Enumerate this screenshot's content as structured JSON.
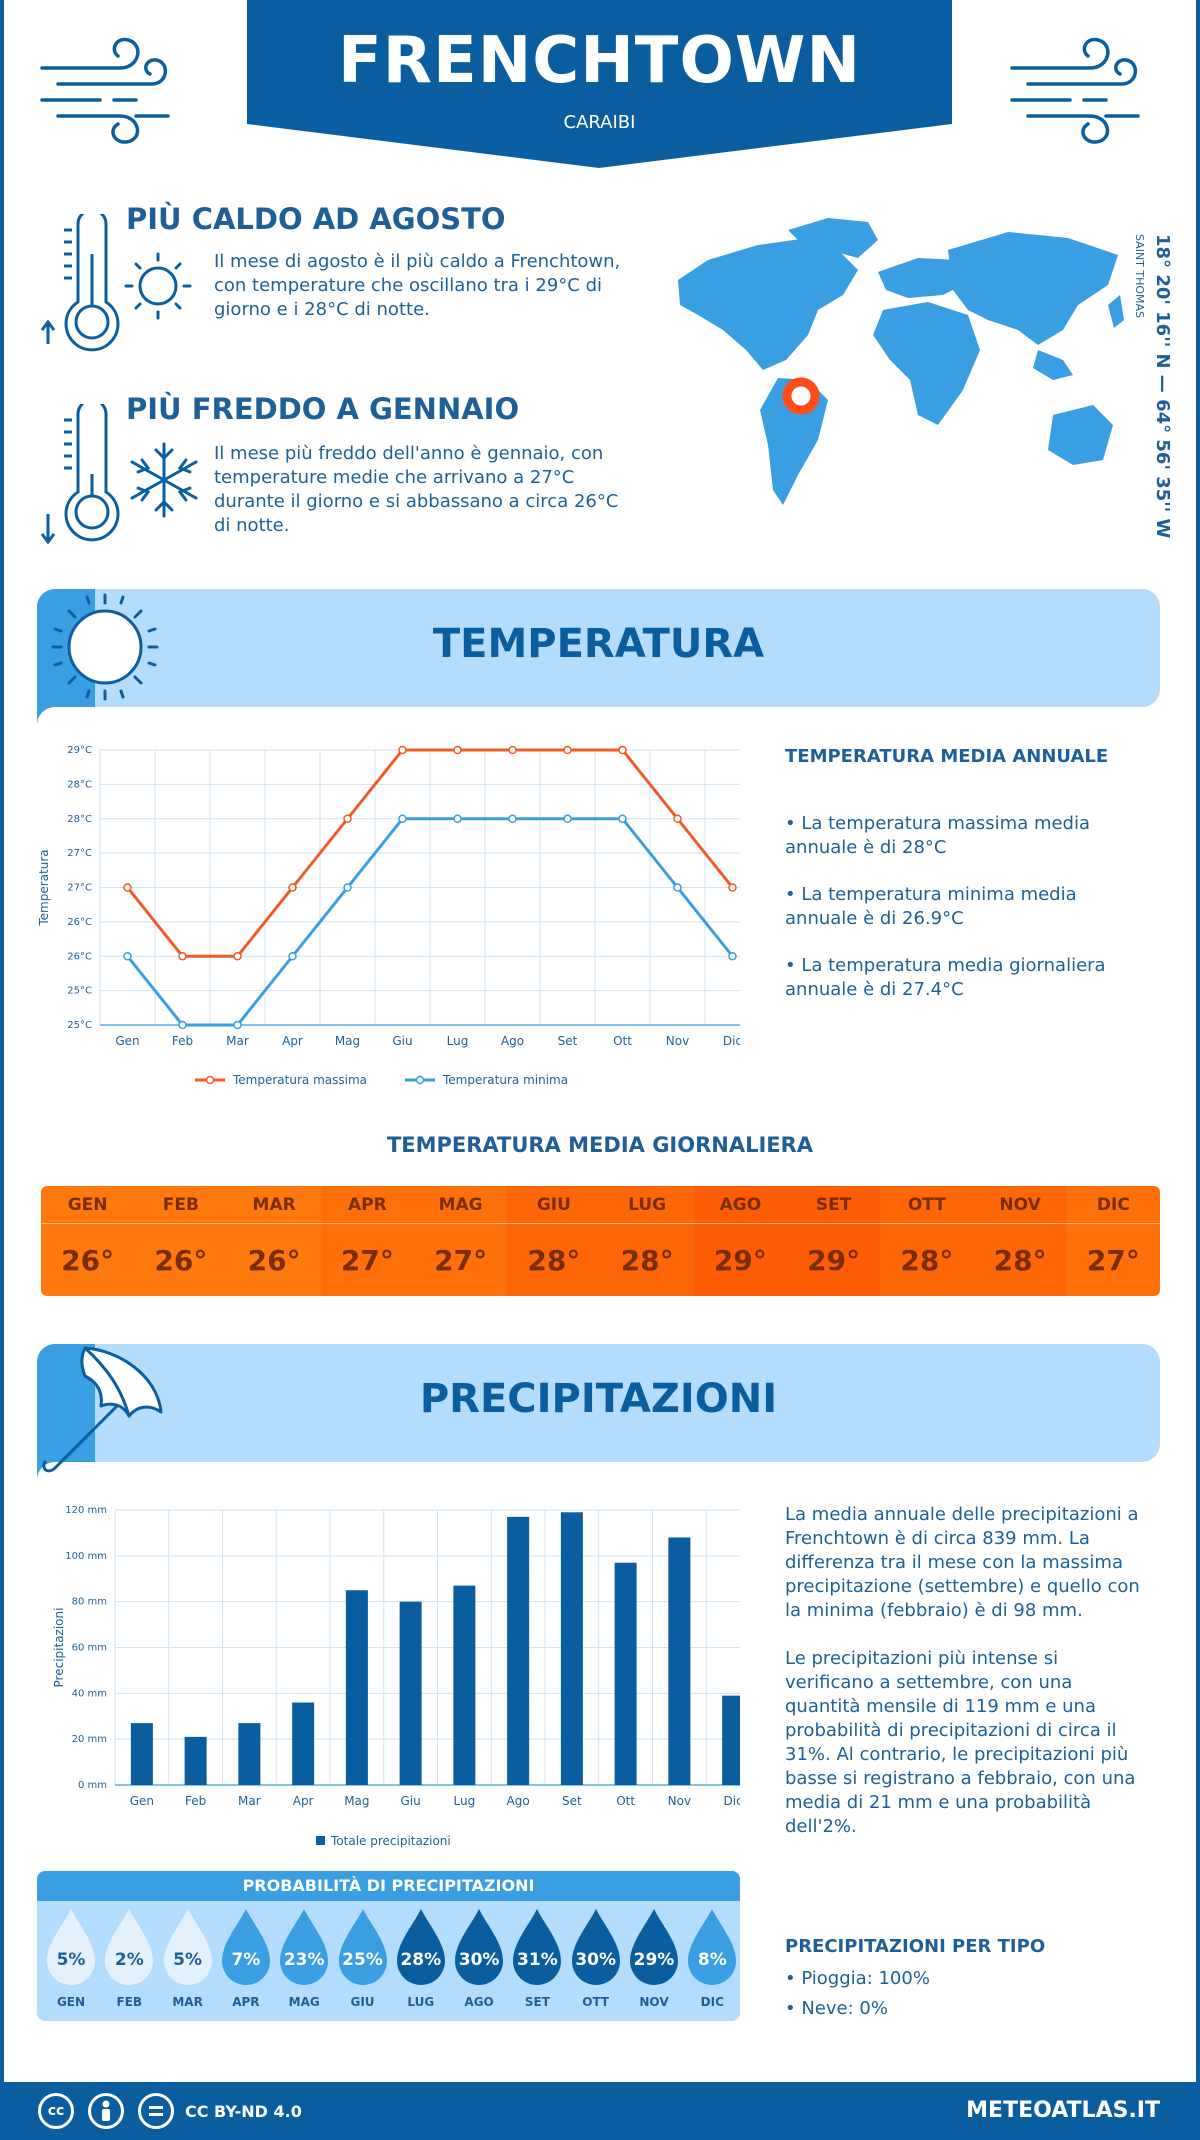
{
  "header": {
    "city": "FRENCHTOWN",
    "region": "CARAIBI"
  },
  "hottest": {
    "title": "PIÙ CALDO AD AGOSTO",
    "text": "Il mese di agosto è il più caldo a Frenchtown, con temperature che oscillano tra i 29°C di giorno e i 28°C di notte."
  },
  "coldest": {
    "title": "PIÙ FREDDO A GENNAIO",
    "text": "Il mese più freddo dell'anno è gennaio, con temperature medie che arrivano a 27°C durante il giorno e si abbassano a circa 26°C di notte."
  },
  "location": {
    "coords": "18° 20' 16'' N — 64° 56' 35'' W",
    "area": "SAINT THOMAS"
  },
  "temperature_section": {
    "title": "TEMPERATURA",
    "annual_title": "TEMPERATURA MEDIA ANNUALE",
    "bullets": [
      "• La temperatura massima media annuale è di 28°C",
      "• La temperatura minima media annuale è di 26.9°C",
      "• La temperatura media giornaliera annuale è di 27.4°C"
    ],
    "daily_title": "TEMPERATURA MEDIA GIORNALIERA",
    "daily": [
      {
        "month": "GEN",
        "value": "26°",
        "color": "#ff7a0e"
      },
      {
        "month": "FEB",
        "value": "26°",
        "color": "#ff7a0e"
      },
      {
        "month": "MAR",
        "value": "26°",
        "color": "#ff7a0e"
      },
      {
        "month": "APR",
        "value": "27°",
        "color": "#ff700a"
      },
      {
        "month": "MAG",
        "value": "27°",
        "color": "#ff700a"
      },
      {
        "month": "GIU",
        "value": "28°",
        "color": "#ff6608"
      },
      {
        "month": "LUG",
        "value": "28°",
        "color": "#ff6608"
      },
      {
        "month": "AGO",
        "value": "29°",
        "color": "#ff5c06"
      },
      {
        "month": "SET",
        "value": "29°",
        "color": "#ff5c06"
      },
      {
        "month": "OTT",
        "value": "28°",
        "color": "#ff6608"
      },
      {
        "month": "NOV",
        "value": "28°",
        "color": "#ff6608"
      },
      {
        "month": "DIC",
        "value": "27°",
        "color": "#ff700a"
      }
    ]
  },
  "chart_data": [
    {
      "type": "line",
      "categories": [
        "Gen",
        "Feb",
        "Mar",
        "Apr",
        "Mag",
        "Giu",
        "Lug",
        "Ago",
        "Set",
        "Ott",
        "Nov",
        "Dic"
      ],
      "series": [
        {
          "name": "Temperatura massima",
          "color": "#f05a28",
          "values": [
            27,
            26,
            26,
            27,
            28,
            29,
            29,
            29,
            29,
            29,
            28,
            27
          ]
        },
        {
          "name": "Temperatura minima",
          "color": "#3a9ee3",
          "values": [
            26,
            25,
            25,
            26,
            27,
            28,
            28,
            28,
            28,
            28,
            27,
            26
          ]
        }
      ],
      "ylabel": "Temperatura",
      "yticks": [
        "25°C",
        "25°C",
        "26°C",
        "26°C",
        "27°C",
        "27°C",
        "28°C",
        "28°C",
        "29°C"
      ],
      "ylim": [
        25,
        29
      ],
      "grid": true,
      "legend": "bottom"
    },
    {
      "type": "bar",
      "categories": [
        "Gen",
        "Feb",
        "Mar",
        "Apr",
        "Mag",
        "Giu",
        "Lug",
        "Ago",
        "Set",
        "Ott",
        "Nov",
        "Dic"
      ],
      "series": [
        {
          "name": "Totale precipitazioni",
          "color": "#0a5ea0",
          "values": [
            27,
            21,
            27,
            36,
            85,
            80,
            87,
            117,
            119,
            97,
            108,
            39
          ]
        }
      ],
      "ylabel": "Precipitazioni",
      "yticks": [
        "0 mm",
        "20 mm",
        "40 mm",
        "60 mm",
        "80 mm",
        "100 mm",
        "120 mm"
      ],
      "ylim": [
        0,
        120
      ],
      "grid": true,
      "legend": "bottom"
    }
  ],
  "precipitation_section": {
    "title": "PRECIPITAZIONI",
    "para1": "La media annuale delle precipitazioni a Frenchtown è di circa 839 mm. La differenza tra il mese con la massima precipitazione (settembre) e quello con la minima (febbraio) è di 98 mm.",
    "para2": "Le precipitazioni più intense si verificano a settembre, con una quantità mensile di 119 mm e una probabilità di precipitazioni di circa il 31%. Al contrario, le precipitazioni più basse si registrano a febbraio, con una media di 21 mm e una probabilità dell'2%.",
    "prob_title": "PROBABILITÀ DI PRECIPITAZIONI",
    "probabilities": [
      {
        "month": "GEN",
        "value": "5%",
        "level": "low"
      },
      {
        "month": "FEB",
        "value": "2%",
        "level": "low"
      },
      {
        "month": "MAR",
        "value": "5%",
        "level": "low"
      },
      {
        "month": "APR",
        "value": "7%",
        "level": "mid"
      },
      {
        "month": "MAG",
        "value": "23%",
        "level": "mid"
      },
      {
        "month": "GIU",
        "value": "25%",
        "level": "mid"
      },
      {
        "month": "LUG",
        "value": "28%",
        "level": "high"
      },
      {
        "month": "AGO",
        "value": "30%",
        "level": "high"
      },
      {
        "month": "SET",
        "value": "31%",
        "level": "high"
      },
      {
        "month": "OTT",
        "value": "30%",
        "level": "high"
      },
      {
        "month": "NOV",
        "value": "29%",
        "level": "high"
      },
      {
        "month": "DIC",
        "value": "8%",
        "level": "mid"
      }
    ],
    "type_title": "PRECIPITAZIONI PER TIPO",
    "types": [
      "• Pioggia: 100%",
      "• Neve: 0%"
    ]
  },
  "colors": {
    "low_drop": "#e3f1fc",
    "mid_drop": "#3a9ee3",
    "high_drop": "#0a5ea0"
  },
  "footer": {
    "license": "CC BY-ND 4.0",
    "site": "METEOATLAS.IT",
    "cc_label": "cc"
  }
}
